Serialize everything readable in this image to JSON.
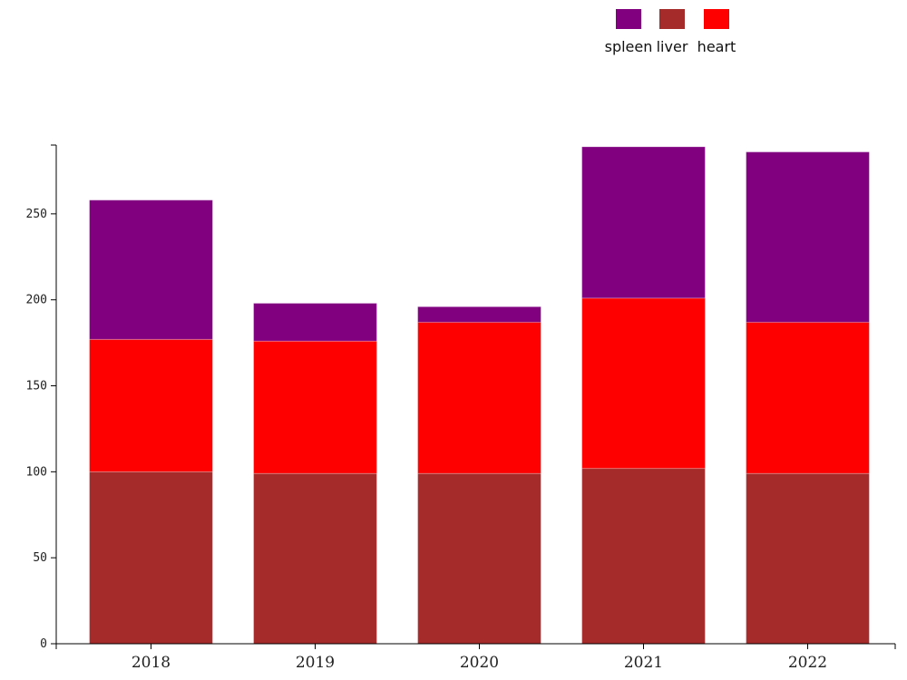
{
  "chart_data": {
    "type": "bar",
    "stacked": true,
    "categories": [
      "2018",
      "2019",
      "2020",
      "2021",
      "2022"
    ],
    "series": [
      {
        "name": "liver",
        "color": "#a52a2a",
        "values": [
          100,
          99,
          99,
          102,
          99
        ]
      },
      {
        "name": "heart",
        "color": "#ff0000",
        "values": [
          77,
          77,
          88,
          99,
          88
        ]
      },
      {
        "name": "spleen",
        "color": "#800080",
        "values": [
          81,
          22,
          9,
          88,
          99
        ]
      }
    ],
    "legend_order": [
      "spleen",
      "liver",
      "heart"
    ],
    "legend_position": "top-right",
    "ylim": [
      0,
      290
    ],
    "yticks": [
      0,
      50,
      100,
      150,
      200,
      250
    ],
    "title": "",
    "xlabel": "",
    "ylabel": ""
  }
}
